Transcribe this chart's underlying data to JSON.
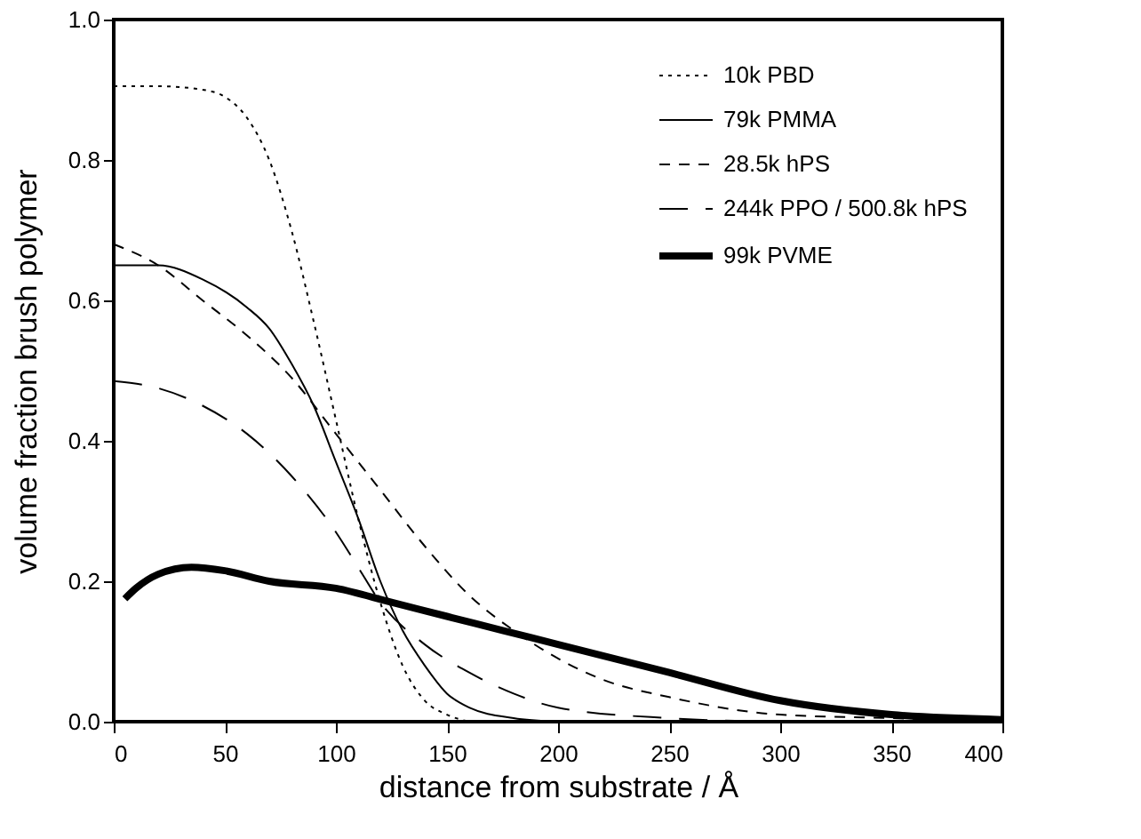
{
  "chart_data": {
    "type": "line",
    "xlabel": "distance from substrate / Å",
    "ylabel": "volume fraction brush polymer",
    "xlim": [
      0,
      400
    ],
    "xticks": [
      0,
      50,
      100,
      150,
      200,
      250,
      300,
      350,
      400
    ],
    "ylim": [
      0,
      1
    ],
    "yticks": [
      {
        "value": 0,
        "label": "0.0"
      },
      {
        "value": 0.2,
        "label": "0.2"
      },
      {
        "value": 0.4,
        "label": "0.4"
      },
      {
        "value": 0.6,
        "label": "0.6"
      },
      {
        "value": 0.8,
        "label": "0.8"
      },
      {
        "value": 1,
        "label": "1.0"
      }
    ],
    "grid": false,
    "legend": "top right",
    "marker": "none",
    "series": [
      {
        "name": "10k PBD",
        "color": "#000000",
        "line_style": "dotted",
        "x": [
          0,
          20,
          40,
          50,
          60,
          70,
          80,
          90,
          100,
          110,
          120,
          130,
          140,
          150,
          160
        ],
        "values": [
          0.905,
          0.905,
          0.9,
          0.89,
          0.86,
          0.8,
          0.7,
          0.57,
          0.43,
          0.29,
          0.17,
          0.08,
          0.03,
          0.01,
          0
        ]
      },
      {
        "name": "79k PMMA",
        "color": "#000000",
        "line_style": "solid",
        "x": [
          0,
          20,
          40,
          60,
          70,
          80,
          90,
          100,
          110,
          120,
          130,
          140,
          150,
          160,
          180,
          200
        ],
        "values": [
          0.65,
          0.65,
          0.63,
          0.59,
          0.56,
          0.51,
          0.45,
          0.37,
          0.29,
          0.2,
          0.13,
          0.08,
          0.04,
          0.02,
          0.005,
          0
        ]
      },
      {
        "name": "28.5k hPS",
        "color": "#000000",
        "line_style": "dashed",
        "x": [
          0,
          20,
          40,
          60,
          80,
          100,
          120,
          140,
          160,
          180,
          200,
          220,
          250,
          300,
          350,
          400
        ],
        "values": [
          0.68,
          0.65,
          0.6,
          0.55,
          0.49,
          0.41,
          0.33,
          0.25,
          0.18,
          0.13,
          0.09,
          0.06,
          0.035,
          0.01,
          0.005,
          0
        ]
      },
      {
        "name": "244k PPO /  500.8k hPS",
        "color": "#000000",
        "line_style": "dashed",
        "x": [
          0,
          20,
          40,
          60,
          80,
          100,
          110,
          120,
          140,
          160,
          180,
          200,
          250,
          300
        ],
        "values": [
          0.485,
          0.475,
          0.45,
          0.41,
          0.35,
          0.27,
          0.22,
          0.17,
          0.11,
          0.07,
          0.04,
          0.02,
          0.005,
          0
        ]
      },
      {
        "name": "99k PVME",
        "color": "#000000",
        "line_style": "solid",
        "x": [
          5,
          10,
          20,
          35,
          50,
          70,
          100,
          125,
          150,
          175,
          200,
          250,
          300,
          350,
          400
        ],
        "values": [
          0.175,
          0.19,
          0.21,
          0.22,
          0.215,
          0.2,
          0.19,
          0.17,
          0.15,
          0.13,
          0.11,
          0.07,
          0.03,
          0.01,
          0.003
        ]
      }
    ]
  }
}
